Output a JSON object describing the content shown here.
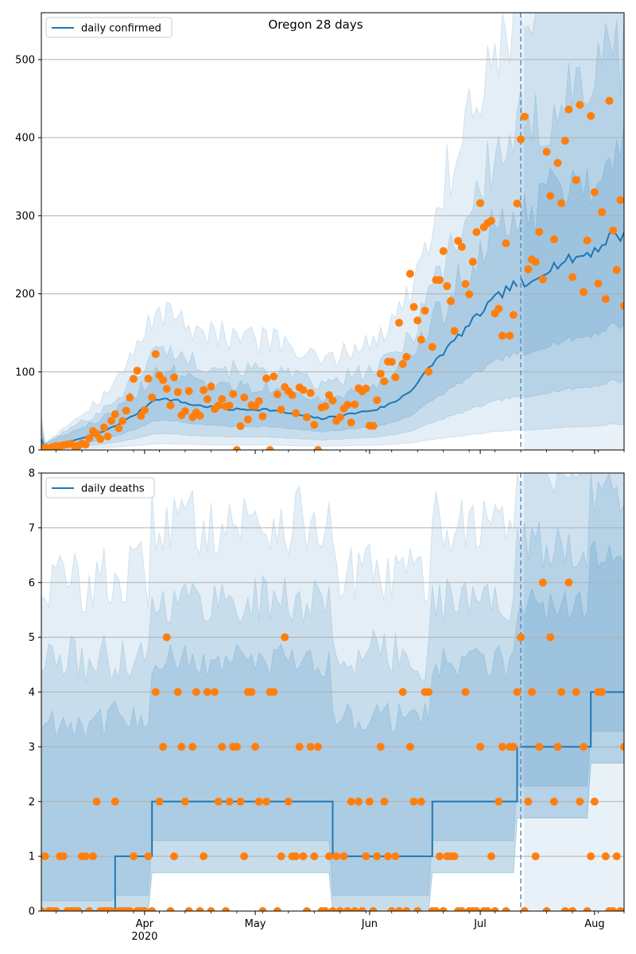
{
  "title": "Oregon 28 days",
  "colors": {
    "band": "#1f77b4",
    "line": "#1f77b4",
    "points": "#ff7f0e",
    "grid": "#b0b0b0",
    "divider": "#5a8fc4"
  },
  "chart_data": [
    {
      "type": "line",
      "legend": "daily confirmed",
      "legend_position": "top-left",
      "ylim": [
        0,
        560
      ],
      "yticks": [
        0,
        100,
        200,
        300,
        400,
        500
      ],
      "xticks": [
        {
          "date": "2020-04-01",
          "label": "Apr",
          "label2": "2020"
        },
        {
          "date": "2020-05-01",
          "label": "May"
        },
        {
          "date": "2020-06-01",
          "label": "Jun"
        },
        {
          "date": "2020-07-01",
          "label": "Jul"
        },
        {
          "date": "2020-08-01",
          "label": "Aug"
        }
      ],
      "grid": "y",
      "xlim": [
        "2020-03-04",
        "2020-08-09"
      ],
      "forecast_start": "2020-07-12",
      "model_anchors": [
        [
          "2020-03-04",
          15
        ],
        [
          "2020-03-05",
          0
        ],
        [
          "2020-03-10",
          8
        ],
        [
          "2020-03-15",
          15
        ],
        [
          "2020-03-20",
          22
        ],
        [
          "2020-03-25",
          33
        ],
        [
          "2020-03-30",
          47
        ],
        [
          "2020-04-04",
          66
        ],
        [
          "2020-04-09",
          64
        ],
        [
          "2020-04-14",
          58
        ],
        [
          "2020-04-19",
          55
        ],
        [
          "2020-04-24",
          52
        ],
        [
          "2020-04-29",
          52
        ],
        [
          "2020-05-04",
          52
        ],
        [
          "2020-05-09",
          48
        ],
        [
          "2020-05-14",
          44
        ],
        [
          "2020-05-19",
          40
        ],
        [
          "2020-05-24",
          44
        ],
        [
          "2020-05-29",
          48
        ],
        [
          "2020-06-03",
          52
        ],
        [
          "2020-06-08",
          62
        ],
        [
          "2020-06-13",
          80
        ],
        [
          "2020-06-18",
          110
        ],
        [
          "2020-06-23",
          135
        ],
        [
          "2020-06-28",
          160
        ],
        [
          "2020-07-03",
          185
        ],
        [
          "2020-07-08",
          205
        ],
        [
          "2020-07-12",
          215
        ],
        [
          "2020-07-13",
          205
        ],
        [
          "2020-07-18",
          230
        ],
        [
          "2020-07-23",
          240
        ],
        [
          "2020-07-28",
          248
        ],
        [
          "2020-08-02",
          258
        ],
        [
          "2020-08-06",
          278
        ],
        [
          "2020-08-09",
          272
        ]
      ],
      "bands": [
        {
          "lo": 0.12,
          "hi": 2.6,
          "opacity": 0.12
        },
        {
          "lo": 0.32,
          "hi": 1.85,
          "opacity": 0.14
        },
        {
          "lo": 0.58,
          "hi": 1.4,
          "opacity": 0.16
        }
      ],
      "observed_anchors": [
        [
          "2020-03-04",
          2
        ],
        [
          "2020-03-10",
          5
        ],
        [
          "2020-03-16",
          10
        ],
        [
          "2020-03-20",
          25
        ],
        [
          "2020-03-25",
          40
        ],
        [
          "2020-03-30",
          75
        ],
        [
          "2020-04-04",
          90
        ],
        [
          "2020-04-09",
          70
        ],
        [
          "2020-04-14",
          55
        ],
        [
          "2020-04-19",
          58
        ],
        [
          "2020-04-24",
          55
        ],
        [
          "2020-04-29",
          55
        ],
        [
          "2020-05-04",
          70
        ],
        [
          "2020-05-09",
          68
        ],
        [
          "2020-05-14",
          62
        ],
        [
          "2020-05-19",
          55
        ],
        [
          "2020-05-24",
          40
        ],
        [
          "2020-05-29",
          55
        ],
        [
          "2020-06-03",
          55
        ],
        [
          "2020-06-08",
          120
        ],
        [
          "2020-06-13",
          170
        ],
        [
          "2020-06-18",
          170
        ],
        [
          "2020-06-23",
          190
        ],
        [
          "2020-06-28",
          220
        ],
        [
          "2020-07-03",
          300
        ],
        [
          "2020-07-08",
          250
        ],
        [
          "2020-07-12",
          310
        ],
        [
          "2020-07-18",
          320
        ],
        [
          "2020-07-23",
          310
        ],
        [
          "2020-07-28",
          340
        ],
        [
          "2020-08-02",
          300
        ],
        [
          "2020-08-09",
          320
        ]
      ],
      "observed_min": 0
    },
    {
      "type": "line",
      "legend": "daily deaths",
      "legend_position": "top-left",
      "ylim": [
        0,
        8
      ],
      "yticks": [
        0,
        1,
        2,
        3,
        4,
        5,
        6,
        7,
        8
      ],
      "xticks": [
        {
          "date": "2020-04-01",
          "label": "Apr",
          "label2": "2020"
        },
        {
          "date": "2020-05-01",
          "label": "May"
        },
        {
          "date": "2020-06-01",
          "label": "Jun"
        },
        {
          "date": "2020-07-01",
          "label": "Jul"
        },
        {
          "date": "2020-08-01",
          "label": "Aug"
        }
      ],
      "grid": "y",
      "xlim": [
        "2020-03-04",
        "2020-08-09"
      ],
      "forecast_start": "2020-07-12",
      "model_steps": [
        [
          "2020-03-04",
          0
        ],
        [
          "2020-03-24",
          1
        ],
        [
          "2020-04-03",
          2
        ],
        [
          "2020-05-22",
          1
        ],
        [
          "2020-06-18",
          2
        ],
        [
          "2020-07-11",
          3
        ],
        [
          "2020-07-31",
          4
        ],
        [
          "2020-08-09",
          4
        ]
      ],
      "bands": [
        {
          "lo": 0.0,
          "hi": 3.2,
          "opacity": 0.12
        },
        {
          "lo": 0.0,
          "hi": 2.3,
          "opacity": 0.14
        },
        {
          "lo": 0.45,
          "hi": 1.6,
          "opacity": 0.16
        }
      ],
      "observed_anchors": [
        [
          "2020-03-04",
          0
        ],
        [
          "2020-03-20",
          1
        ],
        [
          "2020-03-30",
          1
        ],
        [
          "2020-04-04",
          2
        ],
        [
          "2020-04-09",
          3
        ],
        [
          "2020-04-14",
          2
        ],
        [
          "2020-04-19",
          3
        ],
        [
          "2020-04-24",
          2
        ],
        [
          "2020-04-29",
          3
        ],
        [
          "2020-05-04",
          2
        ],
        [
          "2020-05-09",
          3
        ],
        [
          "2020-05-14",
          2
        ],
        [
          "2020-05-19",
          2
        ],
        [
          "2020-05-24",
          1
        ],
        [
          "2020-05-29",
          1
        ],
        [
          "2020-06-03",
          2
        ],
        [
          "2020-06-08",
          2
        ],
        [
          "2020-06-13",
          2
        ],
        [
          "2020-06-18",
          2
        ],
        [
          "2020-06-23",
          2
        ],
        [
          "2020-06-28",
          2
        ],
        [
          "2020-07-03",
          2
        ],
        [
          "2020-07-08",
          3
        ],
        [
          "2020-07-12",
          3
        ],
        [
          "2020-07-18",
          3
        ],
        [
          "2020-07-23",
          3
        ],
        [
          "2020-07-28",
          4
        ],
        [
          "2020-08-02",
          3
        ],
        [
          "2020-08-09",
          4
        ]
      ],
      "observed_min": 0,
      "observed_integer": true
    }
  ]
}
